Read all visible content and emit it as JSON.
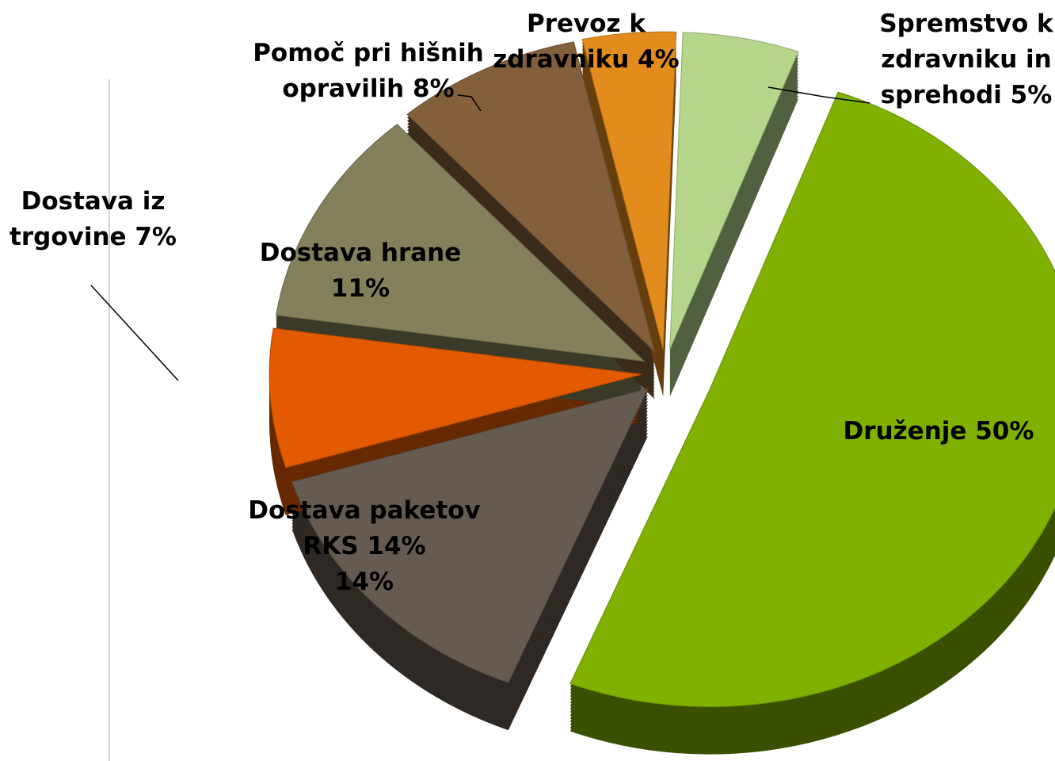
{
  "chart_data": {
    "type": "pie",
    "categories": [
      "Spremstvo k zdravniku in sprehodi",
      "Druženje",
      "Dostava paketov RKS 14%",
      "Dostava iz trgovine",
      "Dostava hrane",
      "Pomoč pri hišnih opravilih",
      "Prevoz k zdravniku"
    ],
    "values": [
      5,
      50,
      14,
      7,
      11,
      8,
      4
    ],
    "value_labels": [
      "5%",
      "50%",
      "14%",
      "7%",
      "11%",
      "8%",
      "4%"
    ],
    "colors": [
      "#b5d58a",
      "#80b000",
      "#665b50",
      "#e35a00",
      "#83805b",
      "#835f3b",
      "#e38c1e"
    ]
  }
}
